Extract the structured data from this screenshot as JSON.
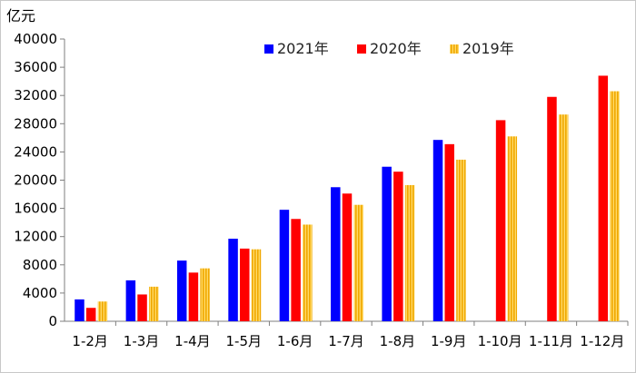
{
  "chart_data": {
    "type": "bar",
    "unit_label": "亿元",
    "categories": [
      "1-2月",
      "1-3月",
      "1-4月",
      "1-5月",
      "1-6月",
      "1-7月",
      "1-8月",
      "1-9月",
      "1-10月",
      "1-11月",
      "1-12月"
    ],
    "series": [
      {
        "name": "2021年",
        "color": "#0000ff",
        "values": [
          3100,
          5800,
          8600,
          11700,
          15800,
          19000,
          21900,
          25700,
          null,
          null,
          null
        ]
      },
      {
        "name": "2020年",
        "color": "#ff0000",
        "values": [
          1900,
          3800,
          6900,
          10300,
          14500,
          18100,
          21200,
          25100,
          28500,
          31800,
          34800
        ]
      },
      {
        "name": "2019年",
        "color": "#ffc000",
        "pattern": "vertical-hatch",
        "values": [
          2800,
          4900,
          7500,
          10200,
          13700,
          16500,
          19300,
          22900,
          26200,
          29300,
          32600
        ]
      }
    ],
    "ylim": [
      0,
      40000
    ],
    "yticks": [
      0,
      4000,
      8000,
      12000,
      16000,
      20000,
      24000,
      28000,
      32000,
      36000,
      40000
    ],
    "grid": false,
    "legend_position": "top-center"
  }
}
